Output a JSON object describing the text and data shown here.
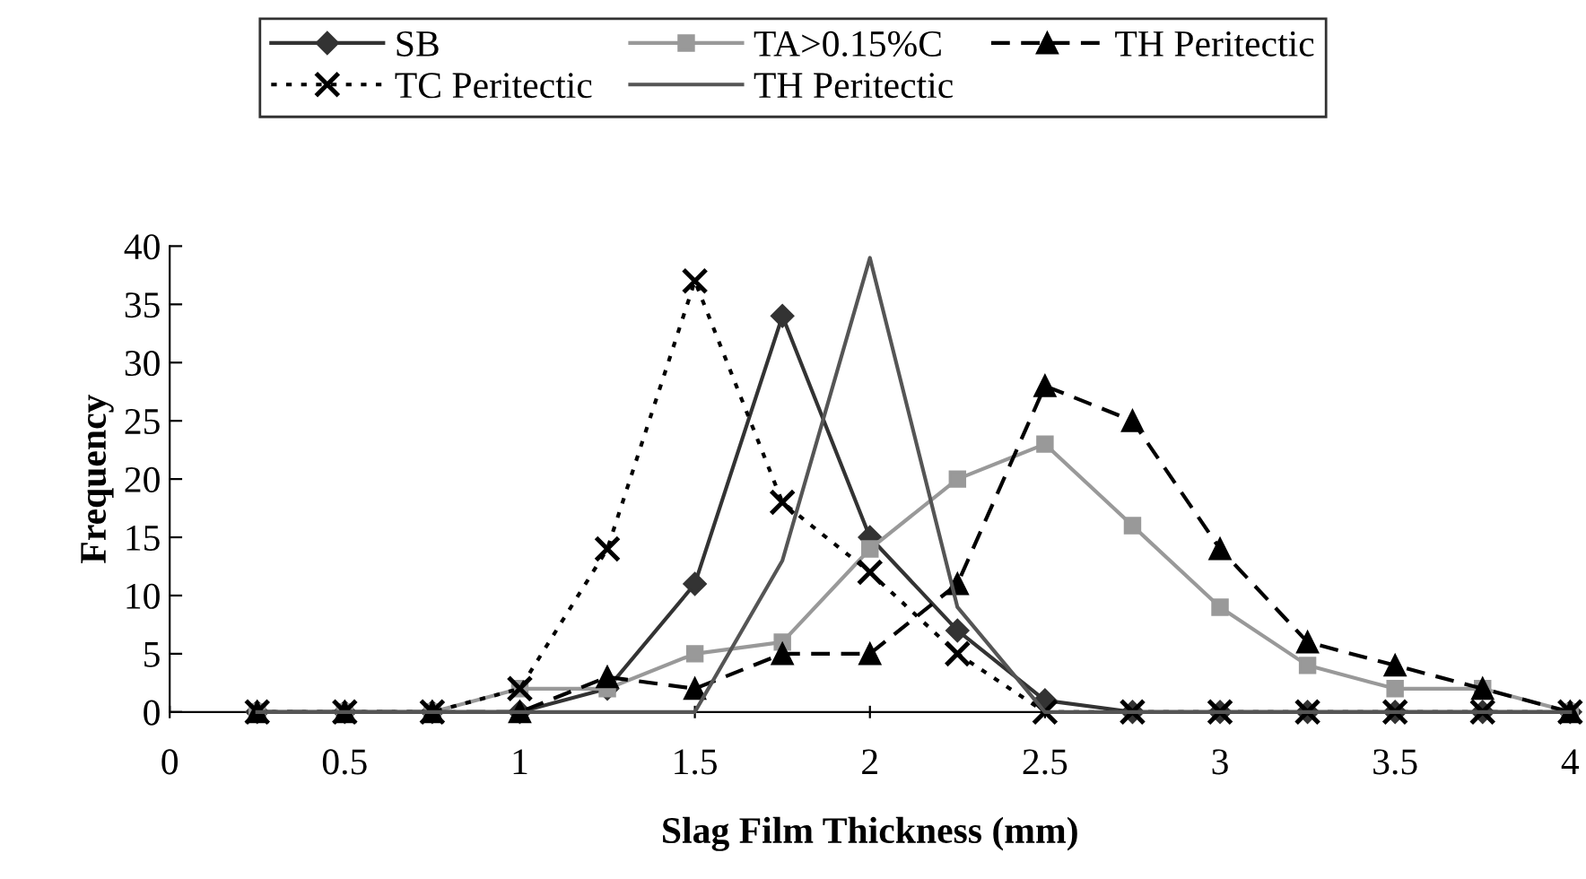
{
  "chart_data": {
    "type": "line",
    "xlabel": "Slag Film Thickness (mm)",
    "ylabel": "Frequency",
    "x": [
      0.25,
      0.5,
      0.75,
      1,
      1.25,
      1.5,
      1.75,
      2,
      2.25,
      2.5,
      2.75,
      3,
      3.25,
      3.5,
      3.75,
      4
    ],
    "series": [
      {
        "name": "SB",
        "color": "#333333",
        "marker": "diamond",
        "line_style": "solid",
        "values": [
          0,
          0,
          0,
          0,
          2,
          11,
          34,
          15,
          7,
          1,
          0,
          0,
          0,
          0,
          0,
          0
        ]
      },
      {
        "name": "TA>0.15%C",
        "color": "#999999",
        "marker": "square",
        "line_style": "solid",
        "values": [
          0,
          0,
          0,
          2,
          2,
          5,
          6,
          14,
          20,
          23,
          16,
          9,
          4,
          2,
          2,
          0
        ]
      },
      {
        "name": "TH Peritectic",
        "color": "#000000",
        "marker": "triangle",
        "line_style": "dashed",
        "values": [
          0,
          0,
          0,
          0,
          3,
          2,
          5,
          5,
          11,
          28,
          25,
          14,
          6,
          4,
          2,
          0
        ]
      },
      {
        "name": "TC Peritectic",
        "color": "#000000",
        "marker": "cross",
        "line_style": "dotted",
        "values": [
          0,
          0,
          0,
          2,
          14,
          37,
          18,
          12,
          5,
          0,
          0,
          0,
          0,
          0,
          0,
          0
        ]
      },
      {
        "name": "TH Peritectic",
        "color": "#555555",
        "marker": "none",
        "line_style": "solid",
        "values": [
          0,
          0,
          0,
          0,
          0,
          0,
          13,
          39,
          9,
          0,
          0,
          0,
          0,
          0,
          0,
          0
        ]
      }
    ],
    "xlim": [
      0,
      4
    ],
    "xticks": [
      0,
      0.5,
      1,
      1.5,
      2,
      2.5,
      3,
      3.5,
      4
    ],
    "ylim": [
      0,
      40
    ],
    "yticks": [
      0,
      5,
      10,
      15,
      20,
      25,
      30,
      35,
      40
    ],
    "grid": false,
    "legend": "top"
  }
}
